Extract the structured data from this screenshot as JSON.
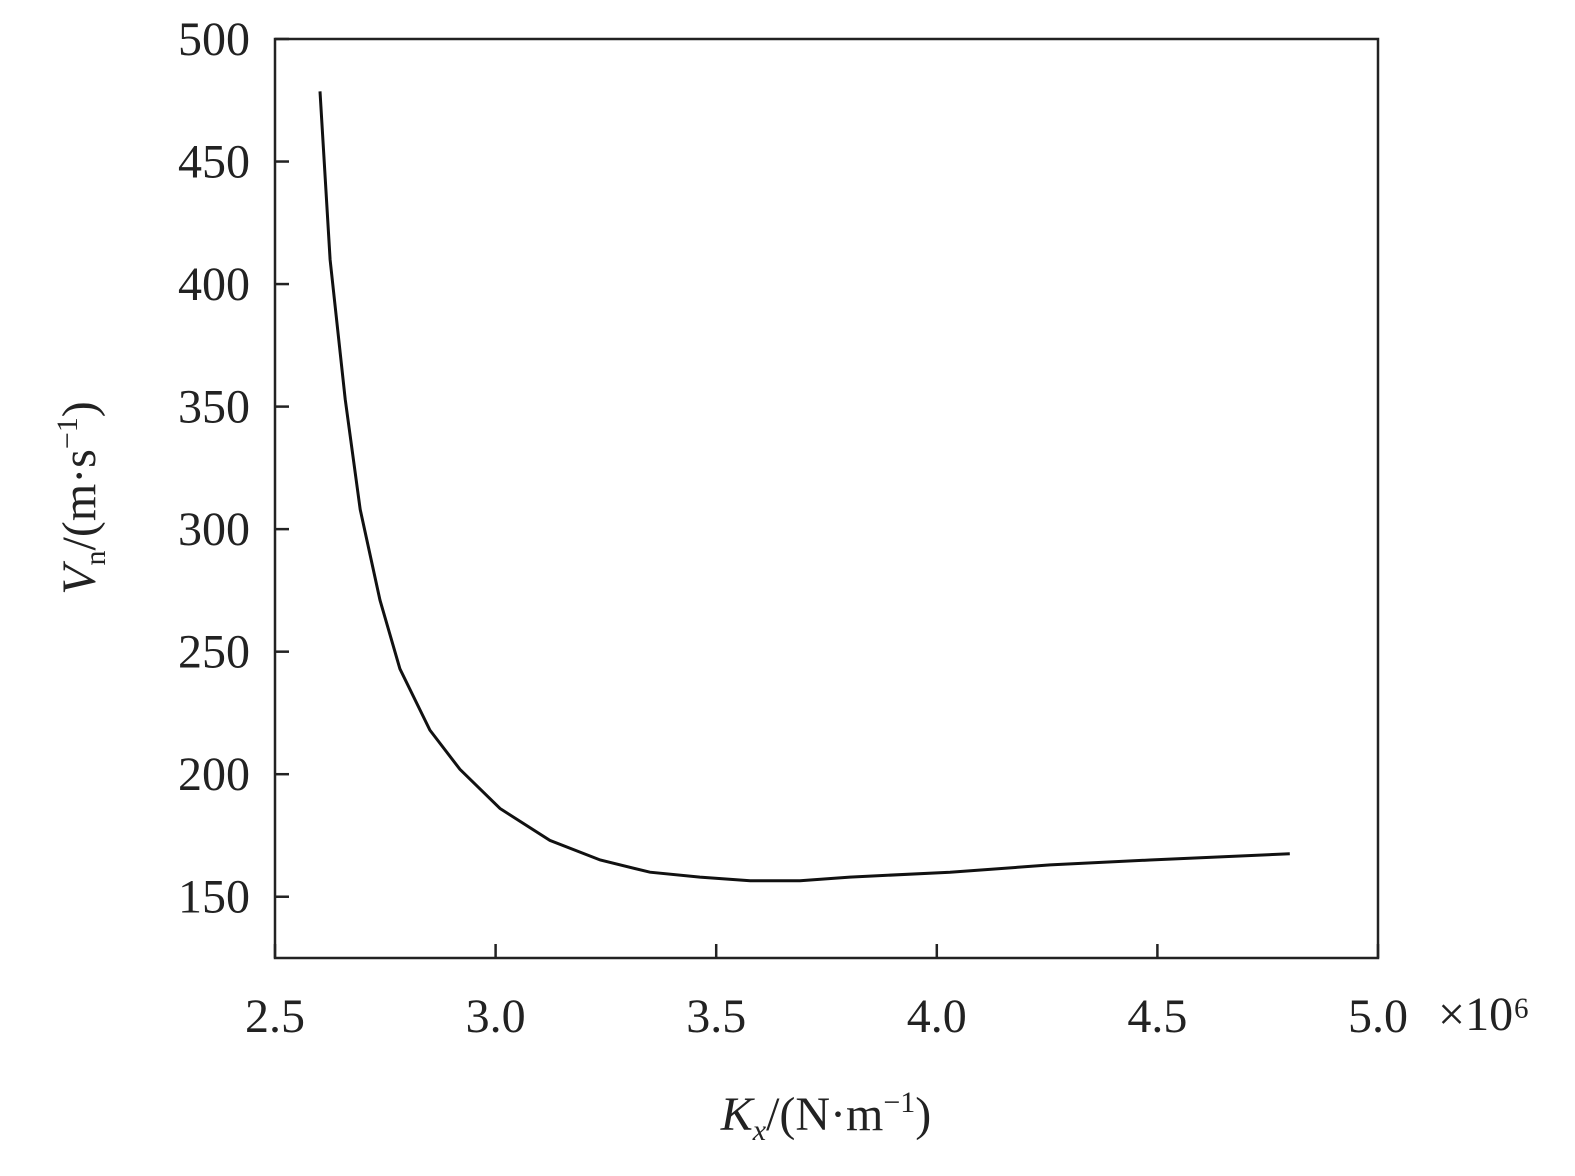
{
  "chart_data": {
    "type": "line",
    "xlabel": [
      "K",
      "x",
      "/(N·m",
      "−1",
      ")"
    ],
    "ylabel": [
      "V",
      "n",
      "/(m·s",
      "−1",
      ")"
    ],
    "x_multiplier": "×10⁶",
    "xlim": [
      2.5,
      5.0
    ],
    "ylim": [
      125,
      500
    ],
    "xticks": [
      {
        "value": 2.5,
        "label": "2.5"
      },
      {
        "value": 3.0,
        "label": "3.0"
      },
      {
        "value": 3.5,
        "label": "3.5"
      },
      {
        "value": 4.0,
        "label": "4.0"
      },
      {
        "value": 4.5,
        "label": "4.5"
      },
      {
        "value": 5.0,
        "label": "5.0"
      }
    ],
    "yticks": [
      150,
      200,
      250,
      300,
      350,
      400,
      450,
      500
    ],
    "series": [
      {
        "color": "#111111",
        "x": [
          2.602,
          2.625,
          2.659,
          2.693,
          2.738,
          2.783,
          2.851,
          2.919,
          3.01,
          3.123,
          3.237,
          3.35,
          3.463,
          3.577,
          3.69,
          3.803,
          4.03,
          4.257,
          4.483,
          4.8
        ],
        "values": [
          478.6,
          410,
          353,
          308,
          271,
          243,
          218,
          202,
          186,
          173,
          165,
          160,
          158,
          156.5,
          156.5,
          158,
          160,
          163,
          165,
          167.5
        ]
      }
    ]
  }
}
